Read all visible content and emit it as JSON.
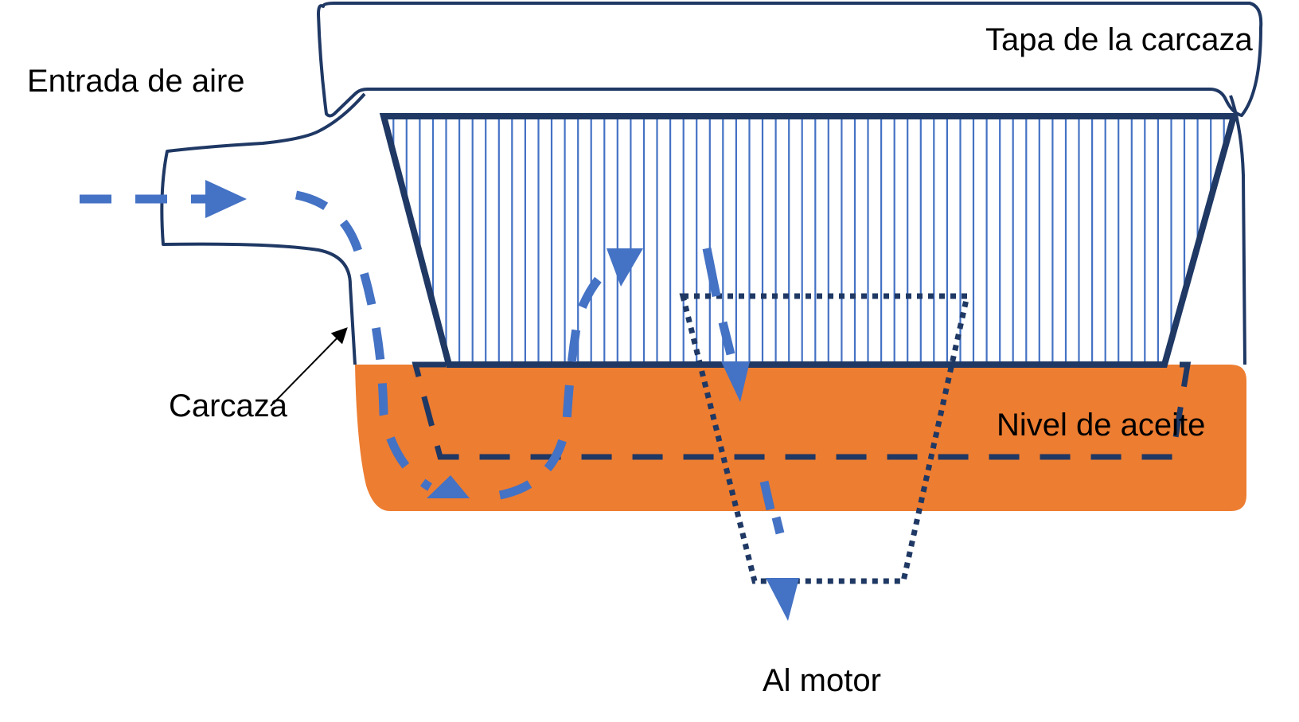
{
  "labels": {
    "cover": "Tapa de la carcaza",
    "air_inlet": "Entrada de aire",
    "housing": "Carcaza",
    "oil_level": "Nivel de aceite",
    "to_engine": "Al motor"
  },
  "colors": {
    "outline": "#1f3864",
    "filter_lines": "#4472c4",
    "oil": "#ed7d31",
    "airflow": "#4472c4",
    "pointer": "#000000"
  },
  "filter": {
    "pleat_count": 64
  }
}
